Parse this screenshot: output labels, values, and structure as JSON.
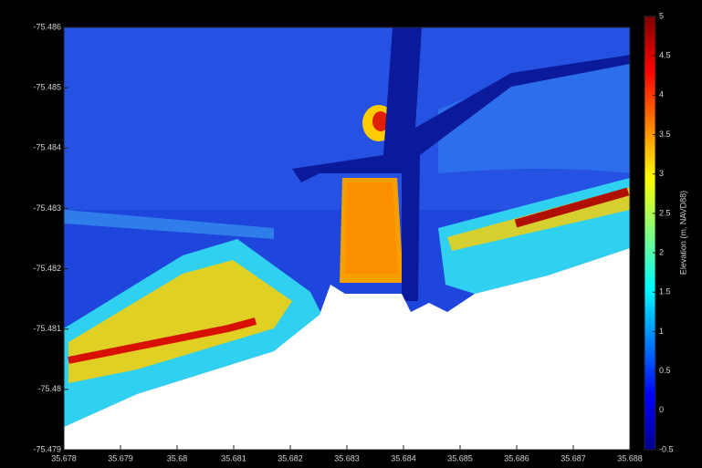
{
  "chart_data": {
    "type": "heatmap",
    "xlim": [
      35.678,
      35.688
    ],
    "xticks": [
      35.678,
      35.679,
      35.68,
      35.681,
      35.682,
      35.683,
      35.684,
      35.685,
      35.686,
      35.687,
      35.688
    ],
    "ylim": [
      -75.479,
      -75.486
    ],
    "yticks": [
      -75.486,
      -75.485,
      -75.484,
      -75.483,
      -75.482,
      -75.481,
      -75.48,
      -75.479
    ],
    "colorbar": {
      "label": "Elevation (m, NAVD88)",
      "lim": [
        -0.5,
        5
      ],
      "ticks": [
        -0.5,
        0,
        0.5,
        1,
        1.5,
        2,
        2.5,
        3,
        3.5,
        4,
        4.5,
        5
      ],
      "colormap": "jet"
    }
  }
}
